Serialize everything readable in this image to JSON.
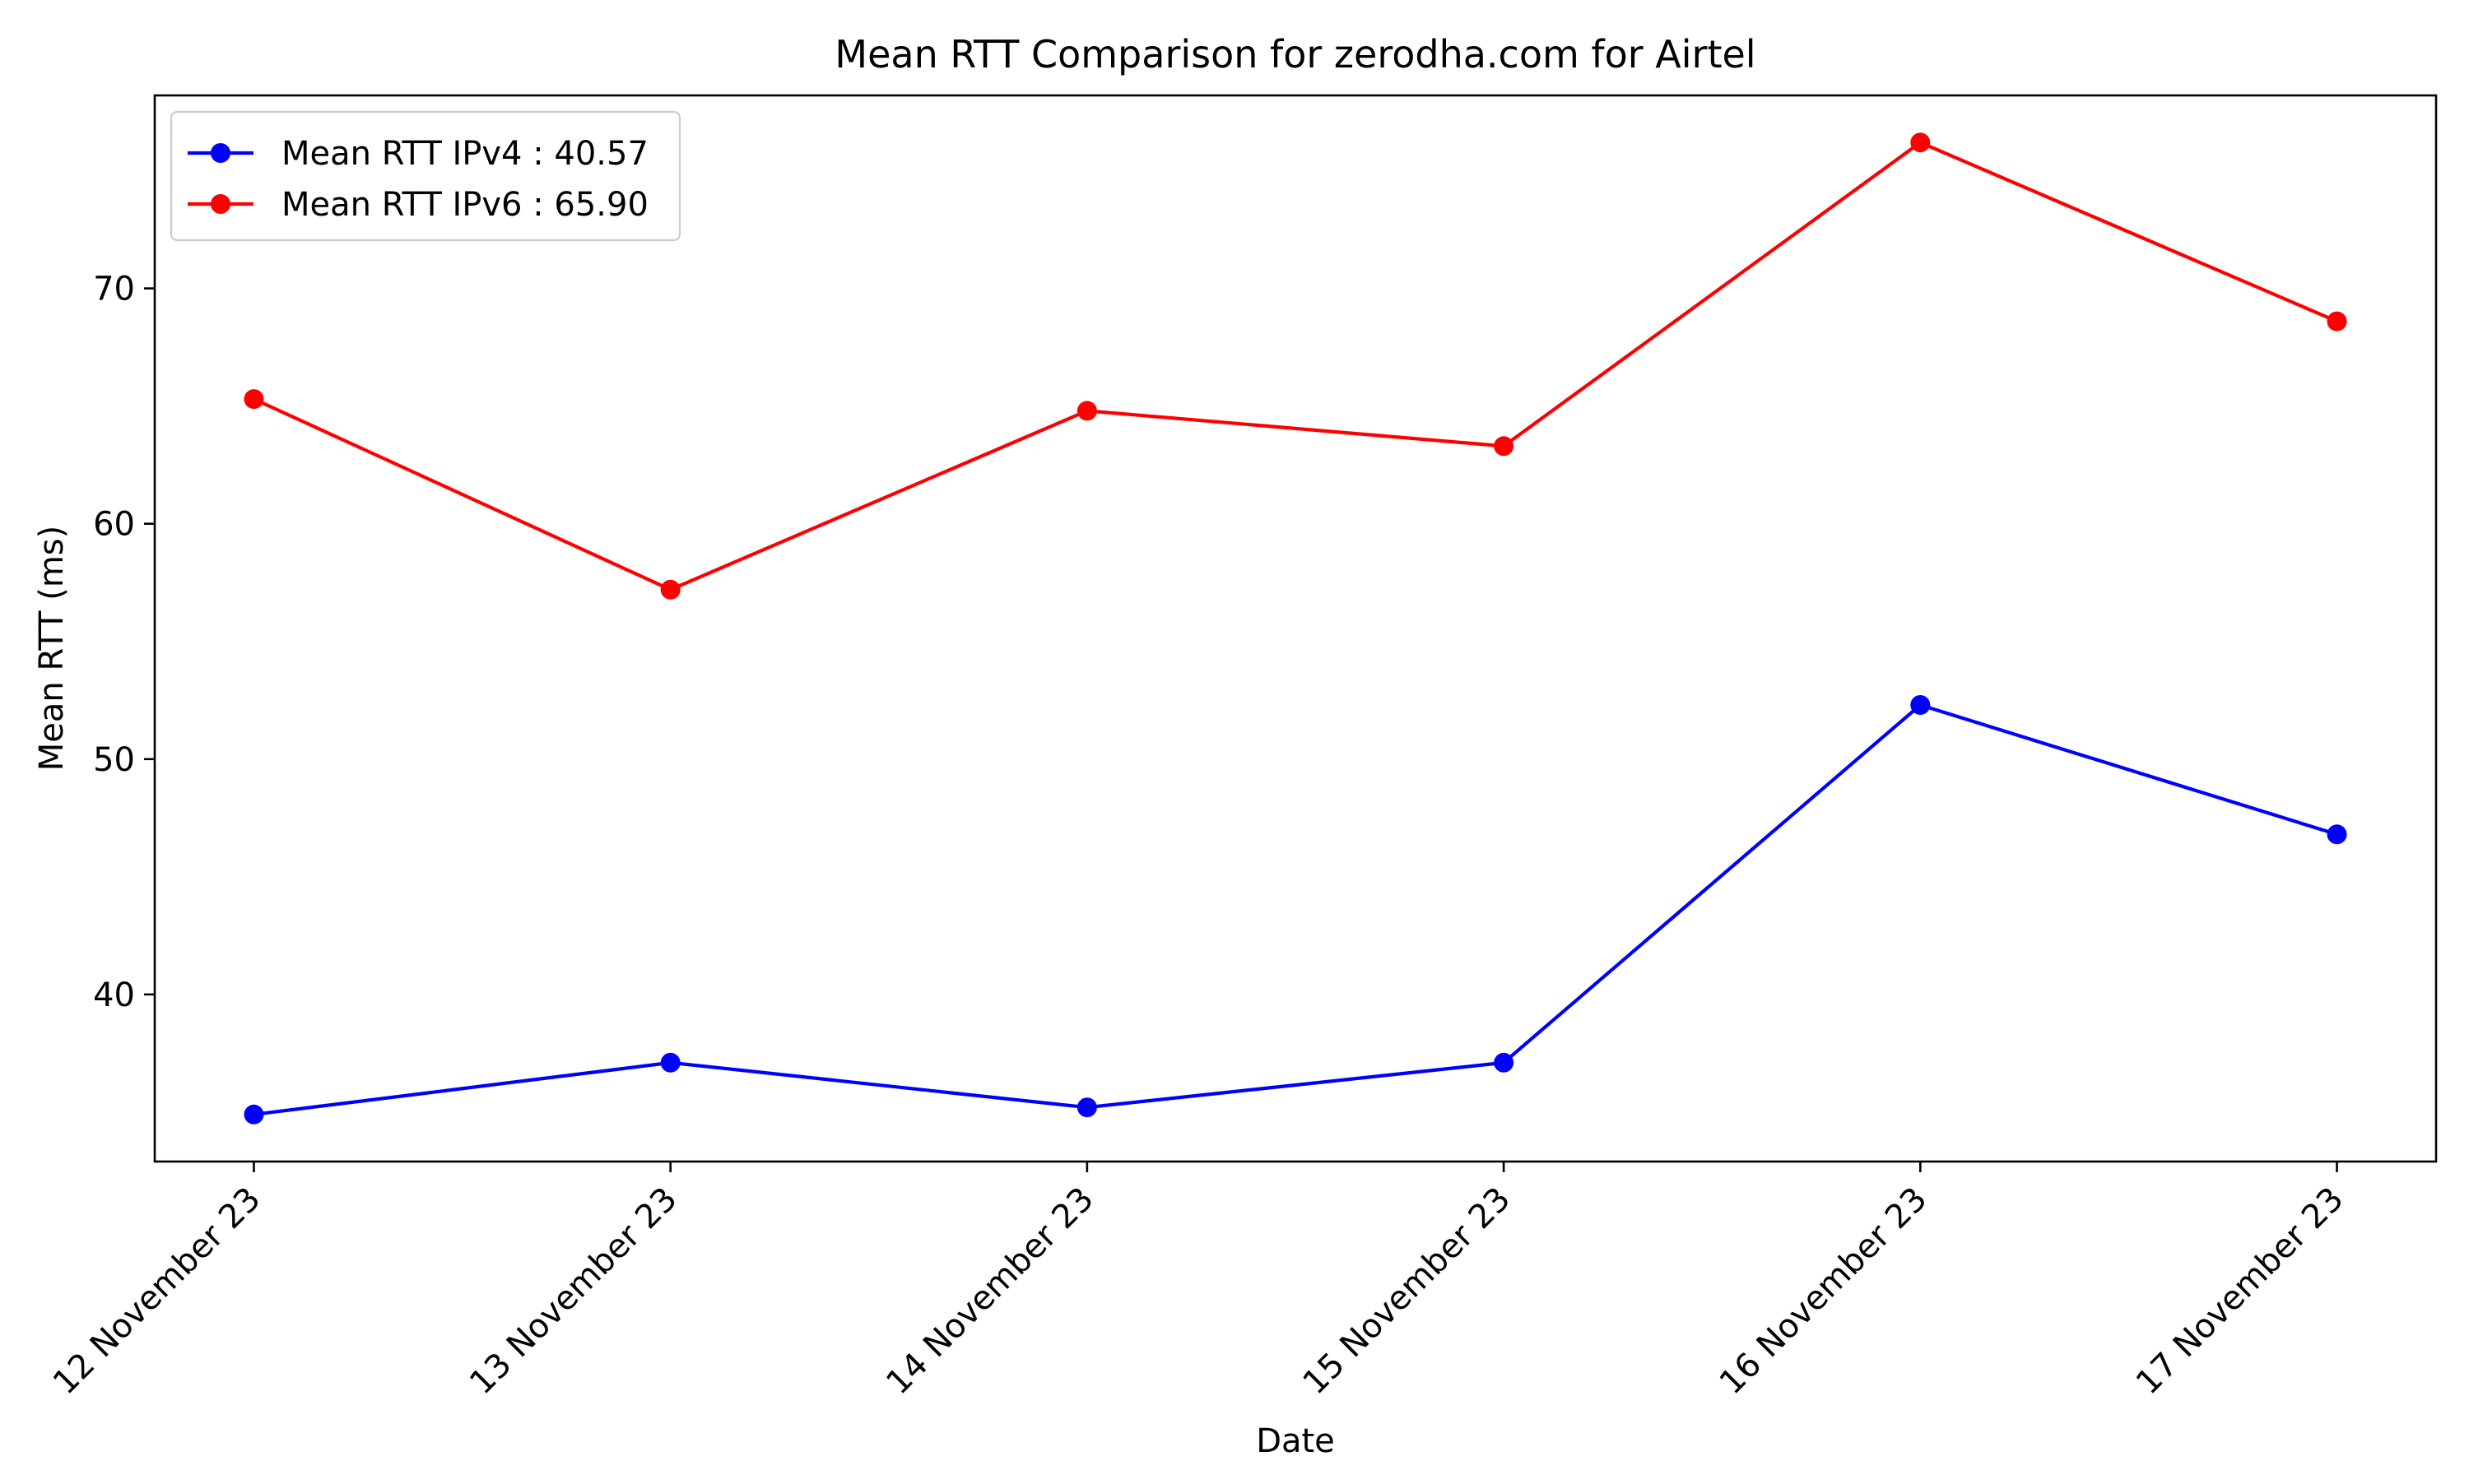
{
  "chart_data": {
    "type": "line",
    "title": "Mean RTT Comparison for zerodha.com for Airtel",
    "xlabel": "Date",
    "ylabel": "Mean RTT (ms)",
    "categories": [
      "12 November 23",
      "13 November 23",
      "14 November 23",
      "15 November 23",
      "16 November 23",
      "17 November 23"
    ],
    "ylim": [
      32.9,
      78.2
    ],
    "yticks": [
      40,
      50,
      60,
      70
    ],
    "grid": false,
    "legend_position": "top-left",
    "series": [
      {
        "name": "Mean RTT IPv4 : 40.57",
        "color": "#0000ff",
        "marker": "circle",
        "values": [
          34.9,
          37.1,
          35.2,
          37.1,
          52.3,
          46.8
        ]
      },
      {
        "name": "Mean RTT IPv6 : 65.90",
        "color": "#ff0000",
        "marker": "circle",
        "values": [
          65.3,
          57.2,
          64.8,
          63.3,
          76.2,
          68.6
        ]
      }
    ]
  }
}
